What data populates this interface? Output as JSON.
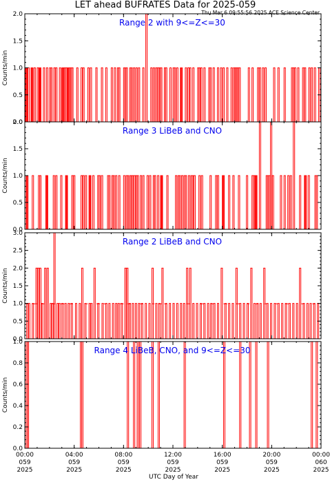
{
  "header": {
    "title": "LET ahead BUFRATES Data for 2025-059",
    "stamp": "Thu Mar  6 09:55:56 2025 ACE Science Center"
  },
  "xaxis": {
    "label": "UTC Day of Year",
    "range_hours": [
      0,
      24
    ],
    "ticks": [
      {
        "hour": 0,
        "l1": "00:00",
        "l2": "059",
        "l3": "2025"
      },
      {
        "hour": 4,
        "l1": "04:00",
        "l2": "059",
        "l3": "2025"
      },
      {
        "hour": 8,
        "l1": "08:00",
        "l2": "059",
        "l3": "2025"
      },
      {
        "hour": 12,
        "l1": "12:00",
        "l2": "059",
        "l3": "2025"
      },
      {
        "hour": 16,
        "l1": "16:00",
        "l2": "059",
        "l3": "2025"
      },
      {
        "hour": 20,
        "l1": "20:00",
        "l2": "059",
        "l3": "2025"
      },
      {
        "hour": 24,
        "l1": "00:00",
        "l2": "060",
        "l3": "2025"
      }
    ]
  },
  "colors": {
    "line": "#ff0000",
    "panel_title": "#0000ee",
    "axes": "#000000"
  },
  "chart_data": [
    {
      "type": "line",
      "title": "Range 2 with 9<=Z<=30",
      "ylabel": "Counts/min",
      "ylim": [
        0,
        2
      ],
      "yticks": [
        "0.0",
        "0.5",
        "1.0",
        "1.5",
        "2.0"
      ],
      "x_unit": "hour of day",
      "events": [
        [
          0.05,
          1
        ],
        [
          0.1,
          1
        ],
        [
          0.25,
          1
        ],
        [
          0.5,
          1
        ],
        [
          0.55,
          1
        ],
        [
          0.75,
          1
        ],
        [
          1.0,
          1
        ],
        [
          1.15,
          1
        ],
        [
          1.2,
          1
        ],
        [
          1.5,
          1
        ],
        [
          1.75,
          1
        ],
        [
          2.0,
          1
        ],
        [
          2.1,
          1
        ],
        [
          2.35,
          1
        ],
        [
          2.5,
          1
        ],
        [
          2.8,
          1
        ],
        [
          3.0,
          1
        ],
        [
          3.05,
          1
        ],
        [
          3.2,
          1
        ],
        [
          3.3,
          1
        ],
        [
          3.45,
          1
        ],
        [
          3.5,
          1
        ],
        [
          3.6,
          1
        ],
        [
          3.7,
          1
        ],
        [
          3.8,
          1
        ],
        [
          4.2,
          1
        ],
        [
          4.55,
          1
        ],
        [
          4.7,
          1
        ],
        [
          5.1,
          1
        ],
        [
          5.3,
          1
        ],
        [
          5.75,
          1
        ],
        [
          6.2,
          1
        ],
        [
          6.55,
          1
        ],
        [
          7.0,
          1
        ],
        [
          7.25,
          1
        ],
        [
          7.5,
          1
        ],
        [
          7.6,
          1
        ],
        [
          8.0,
          1
        ],
        [
          8.1,
          1
        ],
        [
          8.2,
          1
        ],
        [
          8.5,
          1
        ],
        [
          8.6,
          1
        ],
        [
          8.8,
          1
        ],
        [
          9.0,
          1
        ],
        [
          9.2,
          1
        ],
        [
          9.55,
          1
        ],
        [
          9.8,
          2
        ],
        [
          10.2,
          1
        ],
        [
          10.4,
          1
        ],
        [
          10.6,
          1
        ],
        [
          10.75,
          1
        ],
        [
          10.9,
          1
        ],
        [
          11.0,
          1
        ],
        [
          11.3,
          1
        ],
        [
          11.4,
          1
        ],
        [
          11.75,
          1
        ],
        [
          12.0,
          1
        ],
        [
          12.1,
          1
        ],
        [
          12.3,
          1
        ],
        [
          12.6,
          1
        ],
        [
          12.65,
          1
        ],
        [
          13.0,
          1
        ],
        [
          13.2,
          1
        ],
        [
          13.35,
          1
        ],
        [
          13.6,
          1
        ],
        [
          14.0,
          1
        ],
        [
          14.1,
          1
        ],
        [
          14.25,
          1
        ],
        [
          14.5,
          1
        ],
        [
          14.9,
          1
        ],
        [
          15.0,
          1
        ],
        [
          15.25,
          1
        ],
        [
          15.6,
          1
        ],
        [
          15.85,
          1
        ],
        [
          16.05,
          1
        ],
        [
          16.35,
          1
        ],
        [
          16.7,
          1
        ],
        [
          16.9,
          1
        ],
        [
          17.0,
          1
        ],
        [
          17.1,
          1
        ],
        [
          17.2,
          1
        ],
        [
          17.35,
          1
        ],
        [
          18.1,
          1
        ],
        [
          18.4,
          1
        ],
        [
          18.85,
          1
        ],
        [
          19.0,
          1
        ],
        [
          19.25,
          1
        ],
        [
          19.45,
          1
        ],
        [
          20.15,
          1
        ],
        [
          20.5,
          1
        ],
        [
          21.0,
          1
        ],
        [
          21.6,
          1
        ],
        [
          21.7,
          1
        ],
        [
          21.85,
          1
        ],
        [
          22.1,
          1
        ],
        [
          22.5,
          1
        ],
        [
          22.65,
          1
        ],
        [
          23.0,
          1
        ],
        [
          23.2,
          1
        ],
        [
          23.45,
          1
        ],
        [
          23.8,
          1
        ]
      ]
    },
    {
      "type": "line",
      "title": "Range 3 LiBeB and CNO",
      "ylabel": "Counts/min",
      "ylim": [
        0,
        2
      ],
      "yticks": [
        "0.0",
        "0.5",
        "1.0",
        "1.5",
        "2.0"
      ],
      "x_unit": "hour of day",
      "events": [
        [
          0.1,
          1
        ],
        [
          0.15,
          1
        ],
        [
          0.6,
          1
        ],
        [
          1.1,
          1
        ],
        [
          1.2,
          1
        ],
        [
          1.7,
          1
        ],
        [
          1.75,
          1
        ],
        [
          2.3,
          1
        ],
        [
          2.5,
          1
        ],
        [
          2.9,
          1
        ],
        [
          3.3,
          1
        ],
        [
          3.35,
          1
        ],
        [
          3.8,
          1
        ],
        [
          3.95,
          1
        ],
        [
          4.55,
          1
        ],
        [
          4.7,
          1
        ],
        [
          4.9,
          1
        ],
        [
          5.2,
          1
        ],
        [
          5.25,
          1
        ],
        [
          5.5,
          1
        ],
        [
          5.9,
          1
        ],
        [
          6.0,
          1
        ],
        [
          6.2,
          1
        ],
        [
          6.7,
          1
        ],
        [
          6.8,
          1
        ],
        [
          7.05,
          1
        ],
        [
          7.15,
          1
        ],
        [
          7.35,
          1
        ],
        [
          7.6,
          1
        ],
        [
          8.0,
          1
        ],
        [
          8.2,
          1
        ],
        [
          8.3,
          1
        ],
        [
          8.5,
          1
        ],
        [
          8.6,
          1
        ],
        [
          8.7,
          1
        ],
        [
          8.85,
          1
        ],
        [
          9.0,
          1
        ],
        [
          9.1,
          1
        ],
        [
          9.35,
          1
        ],
        [
          9.55,
          1
        ],
        [
          9.9,
          1
        ],
        [
          10.1,
          1
        ],
        [
          10.4,
          1
        ],
        [
          10.5,
          1
        ],
        [
          10.75,
          1
        ],
        [
          11.0,
          1
        ],
        [
          11.05,
          1
        ],
        [
          11.5,
          1
        ],
        [
          12.2,
          1
        ],
        [
          12.4,
          1
        ],
        [
          12.5,
          1
        ],
        [
          12.7,
          1
        ],
        [
          12.9,
          1
        ],
        [
          13.0,
          1
        ],
        [
          13.25,
          1
        ],
        [
          13.45,
          1
        ],
        [
          13.55,
          1
        ],
        [
          13.7,
          1
        ],
        [
          14.1,
          1
        ],
        [
          14.3,
          1
        ],
        [
          15.0,
          1
        ],
        [
          15.45,
          1
        ],
        [
          15.6,
          1
        ],
        [
          16.0,
          1
        ],
        [
          16.05,
          1
        ],
        [
          16.5,
          1
        ],
        [
          16.85,
          1
        ],
        [
          17.3,
          1
        ],
        [
          17.95,
          1
        ],
        [
          18.4,
          1
        ],
        [
          18.5,
          1
        ],
        [
          18.65,
          1
        ],
        [
          18.7,
          1
        ],
        [
          19.0,
          2
        ],
        [
          19.55,
          1
        ],
        [
          19.65,
          1
        ],
        [
          19.8,
          1
        ],
        [
          19.9,
          2
        ],
        [
          20.05,
          1
        ],
        [
          20.7,
          1
        ],
        [
          21.0,
          1
        ],
        [
          21.3,
          1
        ],
        [
          21.5,
          1
        ],
        [
          21.75,
          2
        ],
        [
          22.25,
          1
        ],
        [
          22.65,
          1
        ],
        [
          22.7,
          1
        ],
        [
          22.95,
          1
        ],
        [
          23.5,
          1
        ],
        [
          23.6,
          1
        ]
      ]
    },
    {
      "type": "line",
      "title": "Range 2 LiBeB and CNO",
      "ylabel": "Counts/min",
      "ylim": [
        0,
        3
      ],
      "yticks": [
        "0.0",
        "0.5",
        "1.0",
        "1.5",
        "2.0",
        "2.5",
        "3.0"
      ],
      "x_unit": "hour of day",
      "baseline_on": [
        [
          0.05,
          0.3
        ],
        [
          0.6,
          1.0
        ],
        [
          1.3,
          1.6
        ],
        [
          2.2,
          2.5
        ],
        [
          2.9,
          3.2
        ],
        [
          3.6,
          3.9
        ],
        [
          4.9,
          5.1
        ],
        [
          5.8,
          6.1
        ],
        [
          6.4,
          6.6
        ],
        [
          7.7,
          8.0
        ],
        [
          8.3,
          8.6
        ],
        [
          9.3,
          9.6
        ],
        [
          10.3,
          10.5
        ],
        [
          10.8,
          11.1
        ],
        [
          11.3,
          11.5
        ],
        [
          13.1,
          13.4
        ],
        [
          14.2,
          14.5
        ],
        [
          15.1,
          15.3
        ],
        [
          16.1,
          16.4
        ],
        [
          17.1,
          17.4
        ],
        [
          18.0,
          18.2
        ],
        [
          18.7,
          18.9
        ],
        [
          19.4,
          19.6
        ],
        [
          20.3,
          20.5
        ],
        [
          21.1,
          21.4
        ],
        [
          22.4,
          22.6
        ],
        [
          23.3,
          23.5
        ]
      ],
      "events": [
        [
          0.15,
          1
        ],
        [
          0.3,
          1
        ],
        [
          0.6,
          1
        ],
        [
          0.9,
          2
        ],
        [
          1.05,
          2
        ],
        [
          1.2,
          2
        ],
        [
          1.35,
          1
        ],
        [
          1.6,
          2
        ],
        [
          1.8,
          2
        ],
        [
          2.05,
          1
        ],
        [
          2.2,
          1
        ],
        [
          2.35,
          3
        ],
        [
          2.6,
          1
        ],
        [
          2.75,
          1
        ],
        [
          3.0,
          1
        ],
        [
          3.25,
          1
        ],
        [
          3.5,
          1
        ],
        [
          3.75,
          1
        ],
        [
          4.1,
          1
        ],
        [
          4.4,
          1
        ],
        [
          4.6,
          2
        ],
        [
          4.85,
          1
        ],
        [
          5.2,
          1
        ],
        [
          5.35,
          1
        ],
        [
          5.6,
          2
        ],
        [
          5.9,
          1
        ],
        [
          6.25,
          1
        ],
        [
          6.55,
          1
        ],
        [
          6.8,
          1
        ],
        [
          7.1,
          1
        ],
        [
          7.35,
          1
        ],
        [
          7.55,
          1
        ],
        [
          7.8,
          1
        ],
        [
          8.1,
          2
        ],
        [
          8.25,
          2
        ],
        [
          8.45,
          1
        ],
        [
          8.7,
          1
        ],
        [
          8.95,
          1
        ],
        [
          9.2,
          1
        ],
        [
          9.45,
          1
        ],
        [
          9.75,
          1
        ],
        [
          10.05,
          1
        ],
        [
          10.3,
          2
        ],
        [
          10.6,
          1
        ],
        [
          10.85,
          1
        ],
        [
          11.1,
          2
        ],
        [
          11.4,
          1
        ],
        [
          11.7,
          1
        ],
        [
          12.0,
          1
        ],
        [
          12.3,
          1
        ],
        [
          12.6,
          1
        ],
        [
          12.85,
          1
        ],
        [
          13.1,
          2
        ],
        [
          13.35,
          2
        ],
        [
          13.6,
          1
        ],
        [
          13.9,
          1
        ],
        [
          14.2,
          1
        ],
        [
          14.5,
          1
        ],
        [
          14.8,
          1
        ],
        [
          15.05,
          1
        ],
        [
          15.3,
          1
        ],
        [
          15.6,
          1
        ],
        [
          15.9,
          2
        ],
        [
          16.2,
          1
        ],
        [
          16.5,
          1
        ],
        [
          16.8,
          1
        ],
        [
          17.1,
          2
        ],
        [
          17.4,
          1
        ],
        [
          17.7,
          1
        ],
        [
          18.0,
          1
        ],
        [
          18.3,
          2
        ],
        [
          18.55,
          1
        ],
        [
          18.8,
          1
        ],
        [
          19.05,
          1
        ],
        [
          19.35,
          2
        ],
        [
          19.6,
          1
        ],
        [
          19.9,
          1
        ],
        [
          20.2,
          1
        ],
        [
          20.5,
          1
        ],
        [
          20.8,
          1
        ],
        [
          21.1,
          1
        ],
        [
          21.4,
          1
        ],
        [
          21.7,
          1
        ],
        [
          22.0,
          1
        ],
        [
          22.25,
          2
        ],
        [
          22.55,
          1
        ],
        [
          22.85,
          1
        ],
        [
          23.1,
          1
        ],
        [
          23.4,
          1
        ],
        [
          23.7,
          1
        ]
      ]
    },
    {
      "type": "line",
      "title": "Range 4 LiBeB, CNO, and 9<=Z<=30",
      "ylabel": "Counts/min",
      "ylim": [
        0,
        1
      ],
      "yticks": [
        "0.0",
        "0.2",
        "0.4",
        "0.6",
        "0.8",
        "1.0"
      ],
      "x_unit": "hour of day",
      "events": [
        [
          0.1,
          1
        ],
        [
          0.2,
          1
        ],
        [
          4.5,
          1
        ],
        [
          4.6,
          1
        ],
        [
          8.3,
          1
        ],
        [
          8.8,
          1
        ],
        [
          9.1,
          1
        ],
        [
          9.3,
          1
        ],
        [
          10.3,
          1
        ],
        [
          10.8,
          1
        ],
        [
          12.9,
          1
        ],
        [
          16.1,
          1
        ],
        [
          17.4,
          1
        ],
        [
          18.2,
          1
        ],
        [
          18.7,
          1
        ],
        [
          19.65,
          1
        ],
        [
          23.2,
          1
        ],
        [
          23.6,
          1
        ]
      ]
    }
  ]
}
